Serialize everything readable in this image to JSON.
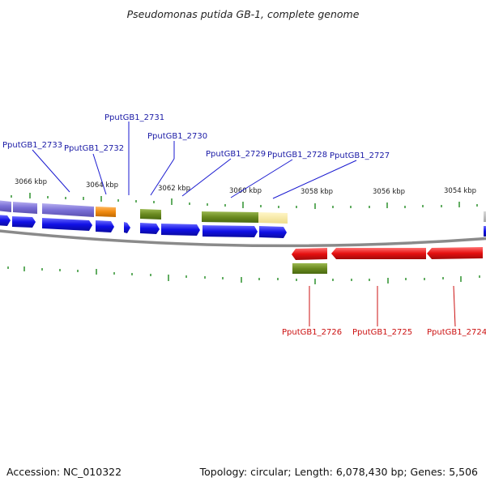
{
  "title": "Pseudomonas putida GB-1, complete genome",
  "footer": {
    "accession": "Accession: NC_010322",
    "stats": "Topology: circular; Length: 6,078,430 bp; Genes: 5,506"
  },
  "scale_labels": [
    "3066 kbp",
    "3064 kbp",
    "3062 kbp",
    "3060 kbp",
    "3058 kbp",
    "3056 kbp",
    "3054 kbp"
  ],
  "top_genes": [
    "PputGB1_2733",
    "PputGB1_2732",
    "PputGB1_2731",
    "PputGB1_2730",
    "PputGB1_2729",
    "PputGB1_2728",
    "PputGB1_2727"
  ],
  "bottom_genes": [
    "PputGB1_2726",
    "PputGB1_2725",
    "PputGB1_2724"
  ],
  "colors": {
    "forward_cds": "#1010e6",
    "reverse_cds": "#e61010",
    "cog_purple": "#7a6fd6",
    "cog_orange": "#f08a10",
    "cog_olive": "#6a8a20",
    "cog_cream": "#f2e29a",
    "tick": "#1f8a1f",
    "backbone": "#888888"
  }
}
